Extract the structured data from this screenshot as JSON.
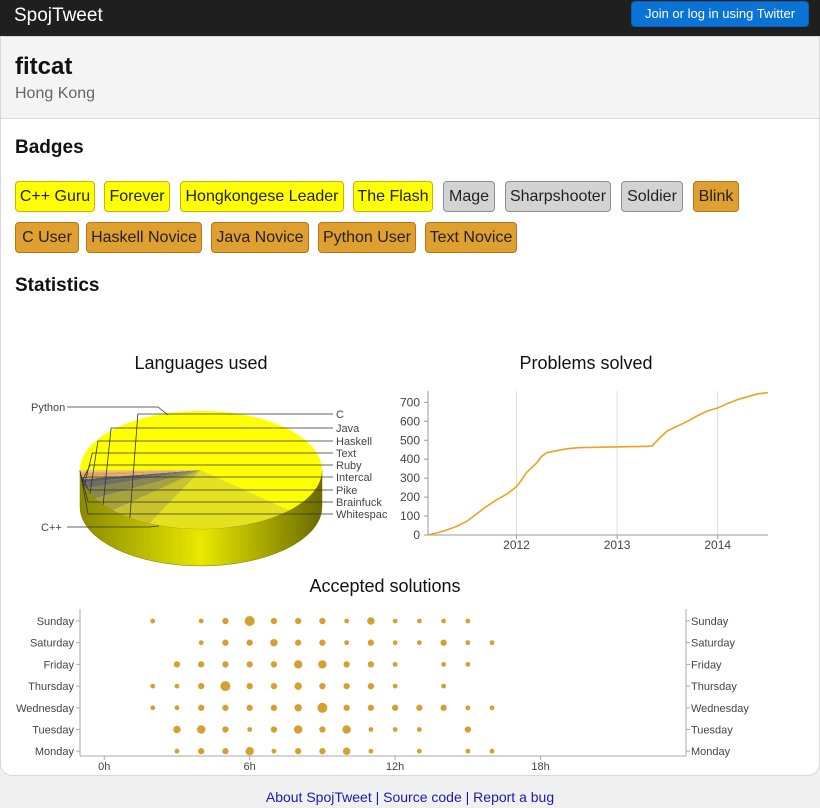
{
  "header": {
    "brand": "SpojTweet",
    "login_button": "Join or log in using Twitter"
  },
  "profile": {
    "name": "fitcat",
    "location": "Hong Kong"
  },
  "badges": {
    "heading": "Badges",
    "items": [
      {
        "label": "C++ Guru",
        "tier": "gold"
      },
      {
        "label": "Forever",
        "tier": "gold"
      },
      {
        "label": "Hongkongese Leader",
        "tier": "gold"
      },
      {
        "label": "The Flash",
        "tier": "gold"
      },
      {
        "label": "Mage",
        "tier": "silver"
      },
      {
        "label": "Sharpshooter",
        "tier": "silver"
      },
      {
        "label": "Soldier",
        "tier": "silver"
      },
      {
        "label": "Blink",
        "tier": "bronze"
      },
      {
        "label": "C User",
        "tier": "bronze"
      },
      {
        "label": "Haskell Novice",
        "tier": "bronze"
      },
      {
        "label": "Java Novice",
        "tier": "bronze"
      },
      {
        "label": "Python User",
        "tier": "bronze"
      },
      {
        "label": "Text Novice",
        "tier": "bronze"
      }
    ]
  },
  "statistics": {
    "heading": "Statistics"
  },
  "chart_data": [
    {
      "type": "pie",
      "title": "Languages used",
      "categories": [
        "C++",
        "Python",
        "C",
        "Java",
        "Haskell",
        "Text",
        "Ruby",
        "Intercal",
        "Pike",
        "Brainfuck",
        "Whitespac"
      ],
      "values": [
        62,
        20,
        6,
        4,
        3,
        1.5,
        1,
        0.8,
        0.7,
        0.5,
        0.5
      ],
      "colors": [
        "#ffff00",
        "#e4e120",
        "#c8c22c",
        "#a8a23c",
        "#8a8650",
        "#706e64",
        "#5f5f60",
        "#d8b070",
        "#e0a050",
        "#e6b060",
        "#f0c870"
      ]
    },
    {
      "type": "line",
      "title": "Problems solved",
      "xlabel": "",
      "ylabel": "",
      "x_ticks": [
        "2012",
        "2013",
        "2014"
      ],
      "y_ticks": [
        "0",
        "100",
        "200",
        "300",
        "400",
        "500",
        "600",
        "700"
      ],
      "ylim": [
        0,
        760
      ],
      "xlim": [
        2011.12,
        2014.5
      ],
      "grid": "vertical at year ticks",
      "color": "#f0a020",
      "x": [
        2011.12,
        2011.2,
        2011.3,
        2011.4,
        2011.5,
        2011.6,
        2011.7,
        2011.8,
        2011.9,
        2012.0,
        2012.05,
        2012.1,
        2012.2,
        2012.25,
        2012.3,
        2012.4,
        2012.5,
        2012.6,
        2012.7,
        2012.8,
        2012.9,
        2013.0,
        2013.1,
        2013.2,
        2013.3,
        2013.35,
        2013.4,
        2013.5,
        2013.6,
        2013.7,
        2013.8,
        2013.9,
        2014.0,
        2014.1,
        2014.2,
        2014.3,
        2014.4,
        2014.5
      ],
      "y": [
        0,
        10,
        25,
        45,
        70,
        110,
        150,
        185,
        215,
        255,
        290,
        330,
        380,
        415,
        435,
        445,
        455,
        460,
        462,
        463,
        464,
        465,
        466,
        467,
        468,
        470,
        500,
        550,
        575,
        600,
        630,
        655,
        670,
        695,
        715,
        730,
        745,
        752
      ]
    },
    {
      "type": "scatter",
      "title": "Accepted solutions",
      "y_categories": [
        "Sunday",
        "Saturday",
        "Friday",
        "Thursday",
        "Wednesday",
        "Tuesday",
        "Monday"
      ],
      "x_ticks": [
        "0h",
        "6h",
        "12h",
        "18h"
      ],
      "xlim": [
        -1,
        24
      ],
      "color": "#d4a032",
      "points": [
        {
          "day": "Sunday",
          "hour": 2,
          "count": 1
        },
        {
          "day": "Sunday",
          "hour": 4,
          "count": 1
        },
        {
          "day": "Sunday",
          "hour": 5,
          "count": 2
        },
        {
          "day": "Sunday",
          "hour": 6,
          "count": 6
        },
        {
          "day": "Sunday",
          "hour": 7,
          "count": 2
        },
        {
          "day": "Sunday",
          "hour": 8,
          "count": 2
        },
        {
          "day": "Sunday",
          "hour": 9,
          "count": 2
        },
        {
          "day": "Sunday",
          "hour": 10,
          "count": 1
        },
        {
          "day": "Sunday",
          "hour": 11,
          "count": 3
        },
        {
          "day": "Sunday",
          "hour": 12,
          "count": 1
        },
        {
          "day": "Sunday",
          "hour": 13,
          "count": 1
        },
        {
          "day": "Sunday",
          "hour": 14,
          "count": 1
        },
        {
          "day": "Sunday",
          "hour": 15,
          "count": 1
        },
        {
          "day": "Saturday",
          "hour": 4,
          "count": 1
        },
        {
          "day": "Saturday",
          "hour": 5,
          "count": 2
        },
        {
          "day": "Saturday",
          "hour": 6,
          "count": 2
        },
        {
          "day": "Saturday",
          "hour": 7,
          "count": 3
        },
        {
          "day": "Saturday",
          "hour": 8,
          "count": 2
        },
        {
          "day": "Saturday",
          "hour": 9,
          "count": 2
        },
        {
          "day": "Saturday",
          "hour": 10,
          "count": 1
        },
        {
          "day": "Saturday",
          "hour": 11,
          "count": 2
        },
        {
          "day": "Saturday",
          "hour": 12,
          "count": 1
        },
        {
          "day": "Saturday",
          "hour": 13,
          "count": 1
        },
        {
          "day": "Saturday",
          "hour": 14,
          "count": 2
        },
        {
          "day": "Saturday",
          "hour": 15,
          "count": 1
        },
        {
          "day": "Saturday",
          "hour": 16,
          "count": 1
        },
        {
          "day": "Friday",
          "hour": 3,
          "count": 2
        },
        {
          "day": "Friday",
          "hour": 4,
          "count": 2
        },
        {
          "day": "Friday",
          "hour": 5,
          "count": 2
        },
        {
          "day": "Friday",
          "hour": 6,
          "count": 2
        },
        {
          "day": "Friday",
          "hour": 7,
          "count": 2
        },
        {
          "day": "Friday",
          "hour": 8,
          "count": 4
        },
        {
          "day": "Friday",
          "hour": 9,
          "count": 4
        },
        {
          "day": "Friday",
          "hour": 10,
          "count": 2
        },
        {
          "day": "Friday",
          "hour": 11,
          "count": 2
        },
        {
          "day": "Friday",
          "hour": 12,
          "count": 1
        },
        {
          "day": "Friday",
          "hour": 14,
          "count": 1
        },
        {
          "day": "Friday",
          "hour": 15,
          "count": 1
        },
        {
          "day": "Thursday",
          "hour": 2,
          "count": 1
        },
        {
          "day": "Thursday",
          "hour": 3,
          "count": 1
        },
        {
          "day": "Thursday",
          "hour": 4,
          "count": 2
        },
        {
          "day": "Thursday",
          "hour": 5,
          "count": 6
        },
        {
          "day": "Thursday",
          "hour": 6,
          "count": 2
        },
        {
          "day": "Thursday",
          "hour": 7,
          "count": 2
        },
        {
          "day": "Thursday",
          "hour": 8,
          "count": 3
        },
        {
          "day": "Thursday",
          "hour": 9,
          "count": 2
        },
        {
          "day": "Thursday",
          "hour": 10,
          "count": 2
        },
        {
          "day": "Thursday",
          "hour": 11,
          "count": 2
        },
        {
          "day": "Thursday",
          "hour": 12,
          "count": 1
        },
        {
          "day": "Thursday",
          "hour": 14,
          "count": 1
        },
        {
          "day": "Wednesday",
          "hour": 2,
          "count": 1
        },
        {
          "day": "Wednesday",
          "hour": 3,
          "count": 1
        },
        {
          "day": "Wednesday",
          "hour": 4,
          "count": 2
        },
        {
          "day": "Wednesday",
          "hour": 5,
          "count": 2
        },
        {
          "day": "Wednesday",
          "hour": 6,
          "count": 2
        },
        {
          "day": "Wednesday",
          "hour": 7,
          "count": 2
        },
        {
          "day": "Wednesday",
          "hour": 8,
          "count": 3
        },
        {
          "day": "Wednesday",
          "hour": 9,
          "count": 6
        },
        {
          "day": "Wednesday",
          "hour": 10,
          "count": 2
        },
        {
          "day": "Wednesday",
          "hour": 11,
          "count": 2
        },
        {
          "day": "Wednesday",
          "hour": 12,
          "count": 2
        },
        {
          "day": "Wednesday",
          "hour": 13,
          "count": 2
        },
        {
          "day": "Wednesday",
          "hour": 14,
          "count": 2
        },
        {
          "day": "Wednesday",
          "hour": 15,
          "count": 1
        },
        {
          "day": "Wednesday",
          "hour": 16,
          "count": 1
        },
        {
          "day": "Tuesday",
          "hour": 3,
          "count": 3
        },
        {
          "day": "Tuesday",
          "hour": 4,
          "count": 4
        },
        {
          "day": "Tuesday",
          "hour": 5,
          "count": 2
        },
        {
          "day": "Tuesday",
          "hour": 6,
          "count": 1
        },
        {
          "day": "Tuesday",
          "hour": 7,
          "count": 2
        },
        {
          "day": "Tuesday",
          "hour": 8,
          "count": 4
        },
        {
          "day": "Tuesday",
          "hour": 9,
          "count": 2
        },
        {
          "day": "Tuesday",
          "hour": 10,
          "count": 4
        },
        {
          "day": "Tuesday",
          "hour": 11,
          "count": 1
        },
        {
          "day": "Tuesday",
          "hour": 12,
          "count": 1
        },
        {
          "day": "Tuesday",
          "hour": 13,
          "count": 1
        },
        {
          "day": "Tuesday",
          "hour": 15,
          "count": 2
        },
        {
          "day": "Monday",
          "hour": 3,
          "count": 1
        },
        {
          "day": "Monday",
          "hour": 4,
          "count": 2
        },
        {
          "day": "Monday",
          "hour": 5,
          "count": 2
        },
        {
          "day": "Monday",
          "hour": 6,
          "count": 4
        },
        {
          "day": "Monday",
          "hour": 7,
          "count": 1
        },
        {
          "day": "Monday",
          "hour": 8,
          "count": 2
        },
        {
          "day": "Monday",
          "hour": 9,
          "count": 2
        },
        {
          "day": "Monday",
          "hour": 10,
          "count": 3
        },
        {
          "day": "Monday",
          "hour": 11,
          "count": 1
        },
        {
          "day": "Monday",
          "hour": 13,
          "count": 1
        },
        {
          "day": "Monday",
          "hour": 15,
          "count": 1
        },
        {
          "day": "Monday",
          "hour": 16,
          "count": 1
        }
      ]
    }
  ],
  "footer": {
    "links": [
      "About SpojTweet",
      "Source code",
      "Report a bug"
    ],
    "separator": "|"
  }
}
